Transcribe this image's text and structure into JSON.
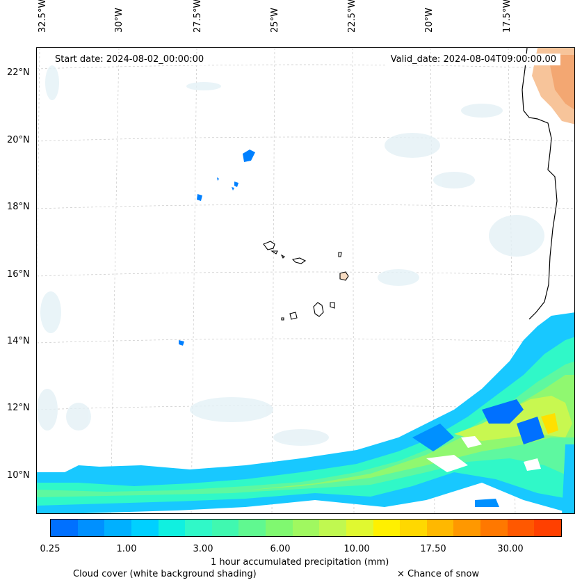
{
  "lon_labels": [
    "32.5°W",
    "30°W",
    "27.5°W",
    "25°W",
    "22.5°W",
    "20°W",
    "17.5°W"
  ],
  "lat_labels": [
    "22°N",
    "20°N",
    "18°N",
    "16°N",
    "14°N",
    "12°N",
    "10°N"
  ],
  "start_date": "Start date: 2024-08-02_00:00:00",
  "valid_date": "Valid_date: 2024-08-04T09:00:00.00",
  "colorbar": {
    "tick_labels": [
      "0.25",
      "1.00",
      "3.00",
      "6.00",
      "10.00",
      "17.50",
      "30.00"
    ],
    "colors": [
      "#0070ff",
      "#0090ff",
      "#00b0ff",
      "#00d0ff",
      "#10f0e0",
      "#30f8c8",
      "#40f8b0",
      "#60f890",
      "#80f870",
      "#a0f860",
      "#c0f850",
      "#e0f830",
      "#fff000",
      "#ffd800",
      "#ffb800",
      "#ff9800",
      "#ff7800",
      "#ff5800",
      "#ff4000"
    ],
    "label": "1 hour accumulated precipitation (mm)"
  },
  "legend": {
    "cloud_cover": "Cloud cover (white background shading)",
    "snow": "× Chance of snow"
  }
}
